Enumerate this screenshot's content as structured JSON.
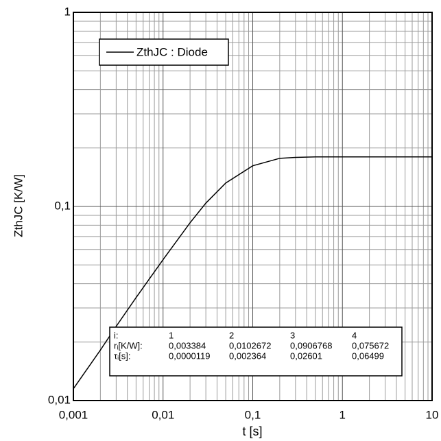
{
  "chart_data": {
    "type": "line",
    "xlabel": "t [s]",
    "ylabel": "ZthJC [K/W]",
    "x": [
      0.001,
      0.002,
      0.003,
      0.005,
      0.01,
      0.02,
      0.03,
      0.05,
      0.1,
      0.2,
      0.3,
      0.5,
      1,
      10
    ],
    "series": [
      {
        "name": "ZthJC : Diode",
        "color": "#000000",
        "values": [
          0.0115,
          0.0182,
          0.0241,
          0.0339,
          0.0532,
          0.0824,
          0.104,
          0.132,
          0.162,
          0.177,
          0.179,
          0.18,
          0.18,
          0.18
        ]
      }
    ],
    "xlim": [
      0.001,
      10
    ],
    "ylim": [
      0.01,
      1
    ],
    "xticks": [
      {
        "value": 0.001,
        "label": "0,001"
      },
      {
        "value": 0.01,
        "label": "0,01"
      },
      {
        "value": 0.1,
        "label": "0,1"
      },
      1,
      10
    ],
    "yticks": [
      {
        "value": 0.01,
        "label": "0,01"
      },
      {
        "value": 0.1,
        "label": "0,1"
      },
      1
    ],
    "xscale": "log",
    "yscale": "log",
    "grid": true,
    "legend": "upper left",
    "table": {
      "rows": [
        [
          "i:",
          "1",
          "2",
          "3",
          "4"
        ],
        [
          "rᵢ[K/W]:",
          "0,003384",
          "0,0102672",
          "0,0906768",
          "0,075672"
        ],
        [
          "τᵢ[s]:",
          "0,0000119",
          "0,002364",
          "0,02601",
          "0,06499"
        ]
      ]
    }
  }
}
